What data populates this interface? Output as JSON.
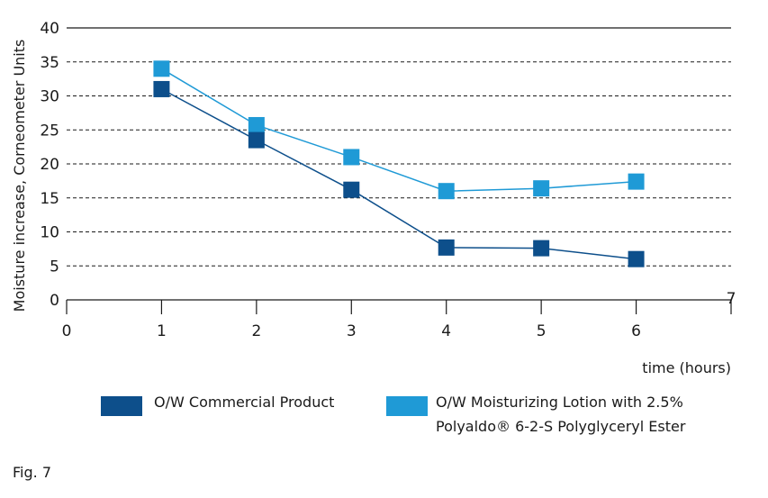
{
  "chart_data": {
    "type": "line",
    "xlabel": "time (hours)",
    "ylabel": "Moisture increase, Corneometer Units",
    "xlim": [
      0,
      7
    ],
    "ylim": [
      0,
      40
    ],
    "x_ticks": [
      "0",
      "1",
      "2",
      "3",
      "4",
      "5",
      "6",
      "7"
    ],
    "y_ticks": [
      "0",
      "5",
      "10",
      "15",
      "20",
      "25",
      "30",
      "35",
      "40"
    ],
    "grid": "dashed horizontal",
    "x": [
      1,
      2,
      3,
      4,
      5,
      6
    ],
    "series": [
      {
        "name": "O/W Commercial Product",
        "color": "#0d4f8b",
        "values": [
          31,
          23.5,
          16.2,
          7.7,
          7.6,
          6
        ]
      },
      {
        "name": "O/W Moisturizing Lotion with 2.5% Polyaldo® 6-2-S Polyglyceryl Ester",
        "color": "#1f9ad6",
        "values": [
          34,
          25.7,
          21,
          16,
          16.4,
          17.4
        ]
      }
    ]
  },
  "legend": {
    "item1": "O/W Commercial Product",
    "item2_line1": "O/W Moisturizing Lotion with 2.5%",
    "item2_line2": "Polyaldo® 6-2-S Polyglyceryl Ester"
  },
  "figure_label": "Fig. 7"
}
